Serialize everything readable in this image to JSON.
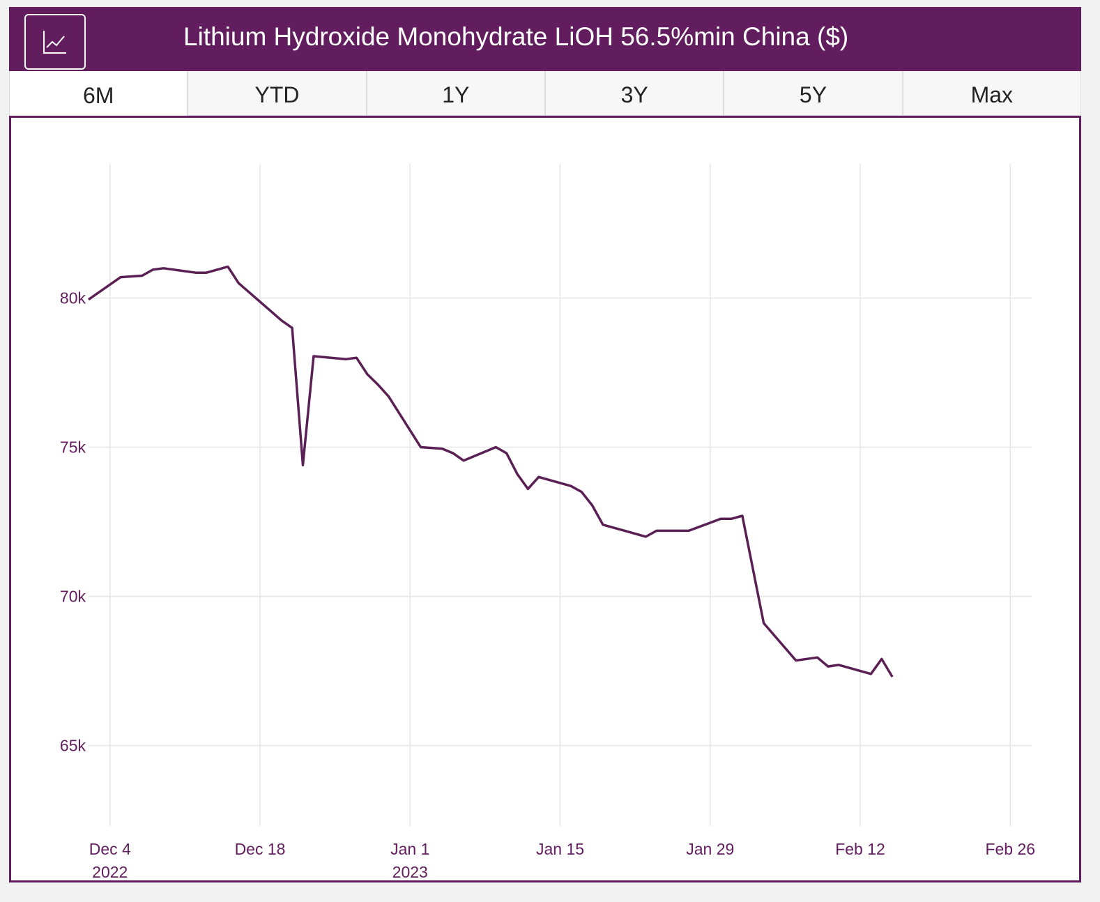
{
  "header": {
    "title": "Lithium Hydroxide Monohydrate LiOH 56.5%min China ($)",
    "icon": "line-chart-icon"
  },
  "tabs": [
    {
      "label": "6M",
      "active": true
    },
    {
      "label": "YTD"
    },
    {
      "label": "1Y"
    },
    {
      "label": "3Y"
    },
    {
      "label": "5Y"
    },
    {
      "label": "Max"
    }
  ],
  "colors": {
    "brand": "#621d5e",
    "line": "#5a1f55",
    "grid": "#e6e6e6"
  },
  "chart_data": {
    "type": "line",
    "title": "",
    "xlabel": "",
    "ylabel": "",
    "xlim": [
      "2022-12-02",
      "2023-02-28"
    ],
    "ylim": [
      62300,
      84500
    ],
    "grid": true,
    "yticks": [
      {
        "value": 65000,
        "label": "65k"
      },
      {
        "value": 70000,
        "label": "70k"
      },
      {
        "value": 75000,
        "label": "75k"
      },
      {
        "value": 80000,
        "label": "80k"
      }
    ],
    "xticks": [
      {
        "date": "2022-12-04",
        "label": "Dec 4",
        "sub": "2022"
      },
      {
        "date": "2022-12-18",
        "label": "Dec 18",
        "sub": ""
      },
      {
        "date": "2023-01-01",
        "label": "Jan 1",
        "sub": "2023"
      },
      {
        "date": "2023-01-15",
        "label": "Jan 15",
        "sub": ""
      },
      {
        "date": "2023-01-29",
        "label": "Jan 29",
        "sub": ""
      },
      {
        "date": "2023-02-12",
        "label": "Feb 12",
        "sub": ""
      },
      {
        "date": "2023-02-26",
        "label": "Feb 26",
        "sub": ""
      }
    ],
    "series": [
      {
        "x": [
          "2022-12-02",
          "2022-12-05",
          "2022-12-07",
          "2022-12-08",
          "2022-12-09",
          "2022-12-12",
          "2022-12-13",
          "2022-12-15",
          "2022-12-16",
          "2022-12-20",
          "2022-12-21",
          "2022-12-22",
          "2022-12-23",
          "2022-12-26",
          "2022-12-27",
          "2022-12-28",
          "2022-12-29",
          "2022-12-30",
          "2023-01-02",
          "2023-01-04",
          "2023-01-05",
          "2023-01-06",
          "2023-01-09",
          "2023-01-10",
          "2023-01-11",
          "2023-01-12",
          "2023-01-13",
          "2023-01-16",
          "2023-01-17",
          "2023-01-18",
          "2023-01-19",
          "2023-01-20",
          "2023-01-23",
          "2023-01-24",
          "2023-01-27",
          "2023-01-30",
          "2023-01-31",
          "2023-02-01",
          "2023-02-03",
          "2023-02-06",
          "2023-02-08",
          "2023-02-09",
          "2023-02-10",
          "2023-02-13",
          "2023-02-14",
          "2023-02-15"
        ],
        "y": [
          79950,
          80700,
          80750,
          80950,
          81000,
          80850,
          80850,
          81050,
          80500,
          79250,
          79000,
          74400,
          78050,
          77950,
          78000,
          77450,
          77100,
          76700,
          75000,
          74950,
          74800,
          74550,
          75000,
          74800,
          74100,
          73600,
          74000,
          73700,
          73500,
          73050,
          72400,
          72300,
          72000,
          72200,
          72200,
          72600,
          72600,
          72700,
          69100,
          67850,
          67950,
          67650,
          67700,
          67400,
          67900,
          67300
        ]
      }
    ]
  }
}
